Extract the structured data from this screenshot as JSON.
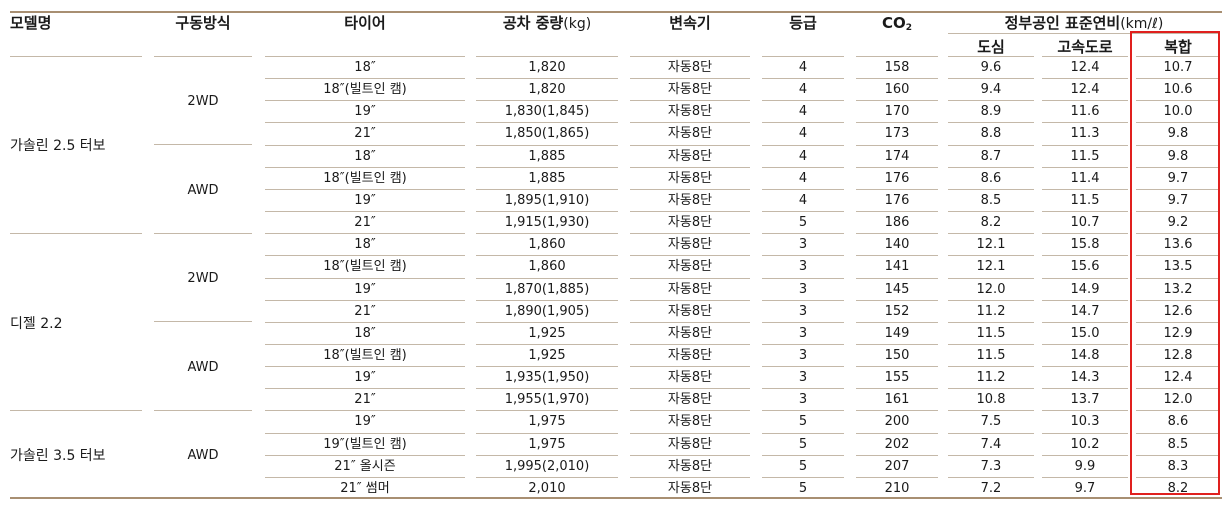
{
  "headers": {
    "model": "모델명",
    "drive": "구동방식",
    "tire": "타이어",
    "weight_label": "공차 중량",
    "weight_unit": "(kg)",
    "transmission": "변속기",
    "grade": "등급",
    "co2_main": "CO",
    "co2_sub": "2",
    "fuel_group_label": "정부공인 표준연비",
    "fuel_group_unit": "(km/ℓ)",
    "city": "도심",
    "highway": "고속도로",
    "combined": "복합"
  },
  "groups": [
    {
      "model": "가솔린 2.5 터보",
      "drives": [
        "2WD",
        "AWD"
      ]
    },
    {
      "model": "디젤 2.2",
      "drives": [
        "2WD",
        "AWD"
      ]
    },
    {
      "model": "가솔린 3.5 터보",
      "drives": [
        "AWD"
      ]
    }
  ],
  "rows": [
    [
      "18″",
      "1,820",
      "자동8단",
      "4",
      "158",
      "9.6",
      "12.4",
      "10.7"
    ],
    [
      "18″(빌트인 캠)",
      "1,820",
      "자동8단",
      "4",
      "160",
      "9.4",
      "12.4",
      "10.6"
    ],
    [
      "19″",
      "1,830(1,845)",
      "자동8단",
      "4",
      "170",
      "8.9",
      "11.6",
      "10.0"
    ],
    [
      "21″",
      "1,850(1,865)",
      "자동8단",
      "4",
      "173",
      "8.8",
      "11.3",
      "9.8"
    ],
    [
      "18″",
      "1,885",
      "자동8단",
      "4",
      "174",
      "8.7",
      "11.5",
      "9.8"
    ],
    [
      "18″(빌트인 캠)",
      "1,885",
      "자동8단",
      "4",
      "176",
      "8.6",
      "11.4",
      "9.7"
    ],
    [
      "19″",
      "1,895(1,910)",
      "자동8단",
      "4",
      "176",
      "8.5",
      "11.5",
      "9.7"
    ],
    [
      "21″",
      "1,915(1,930)",
      "자동8단",
      "5",
      "186",
      "8.2",
      "10.7",
      "9.2"
    ],
    [
      "18″",
      "1,860",
      "자동8단",
      "3",
      "140",
      "12.1",
      "15.8",
      "13.6"
    ],
    [
      "18″(빌트인 캠)",
      "1,860",
      "자동8단",
      "3",
      "141",
      "12.1",
      "15.6",
      "13.5"
    ],
    [
      "19″",
      "1,870(1,885)",
      "자동8단",
      "3",
      "145",
      "12.0",
      "14.9",
      "13.2"
    ],
    [
      "21″",
      "1,890(1,905)",
      "자동8단",
      "3",
      "152",
      "11.2",
      "14.7",
      "12.6"
    ],
    [
      "18″",
      "1,925",
      "자동8단",
      "3",
      "149",
      "11.5",
      "15.0",
      "12.9"
    ],
    [
      "18″(빌트인 캠)",
      "1,925",
      "자동8단",
      "3",
      "150",
      "11.5",
      "14.8",
      "12.8"
    ],
    [
      "19″",
      "1,935(1,950)",
      "자동8단",
      "3",
      "155",
      "11.2",
      "14.3",
      "12.4"
    ],
    [
      "21″",
      "1,955(1,970)",
      "자동8단",
      "3",
      "161",
      "10.8",
      "13.7",
      "12.0"
    ],
    [
      "19″",
      "1,975",
      "자동8단",
      "5",
      "200",
      "7.5",
      "10.3",
      "8.6"
    ],
    [
      "19″(빌트인 캠)",
      "1,975",
      "자동8단",
      "5",
      "202",
      "7.4",
      "10.2",
      "8.5"
    ],
    [
      "21″ 올시즌",
      "1,995(2,010)",
      "자동8단",
      "5",
      "207",
      "7.3",
      "9.9",
      "8.3"
    ],
    [
      "21″ 썸머",
      "2,010",
      "자동8단",
      "5",
      "210",
      "7.2",
      "9.7",
      "8.2"
    ]
  ],
  "highlight_color": "#e0201e"
}
